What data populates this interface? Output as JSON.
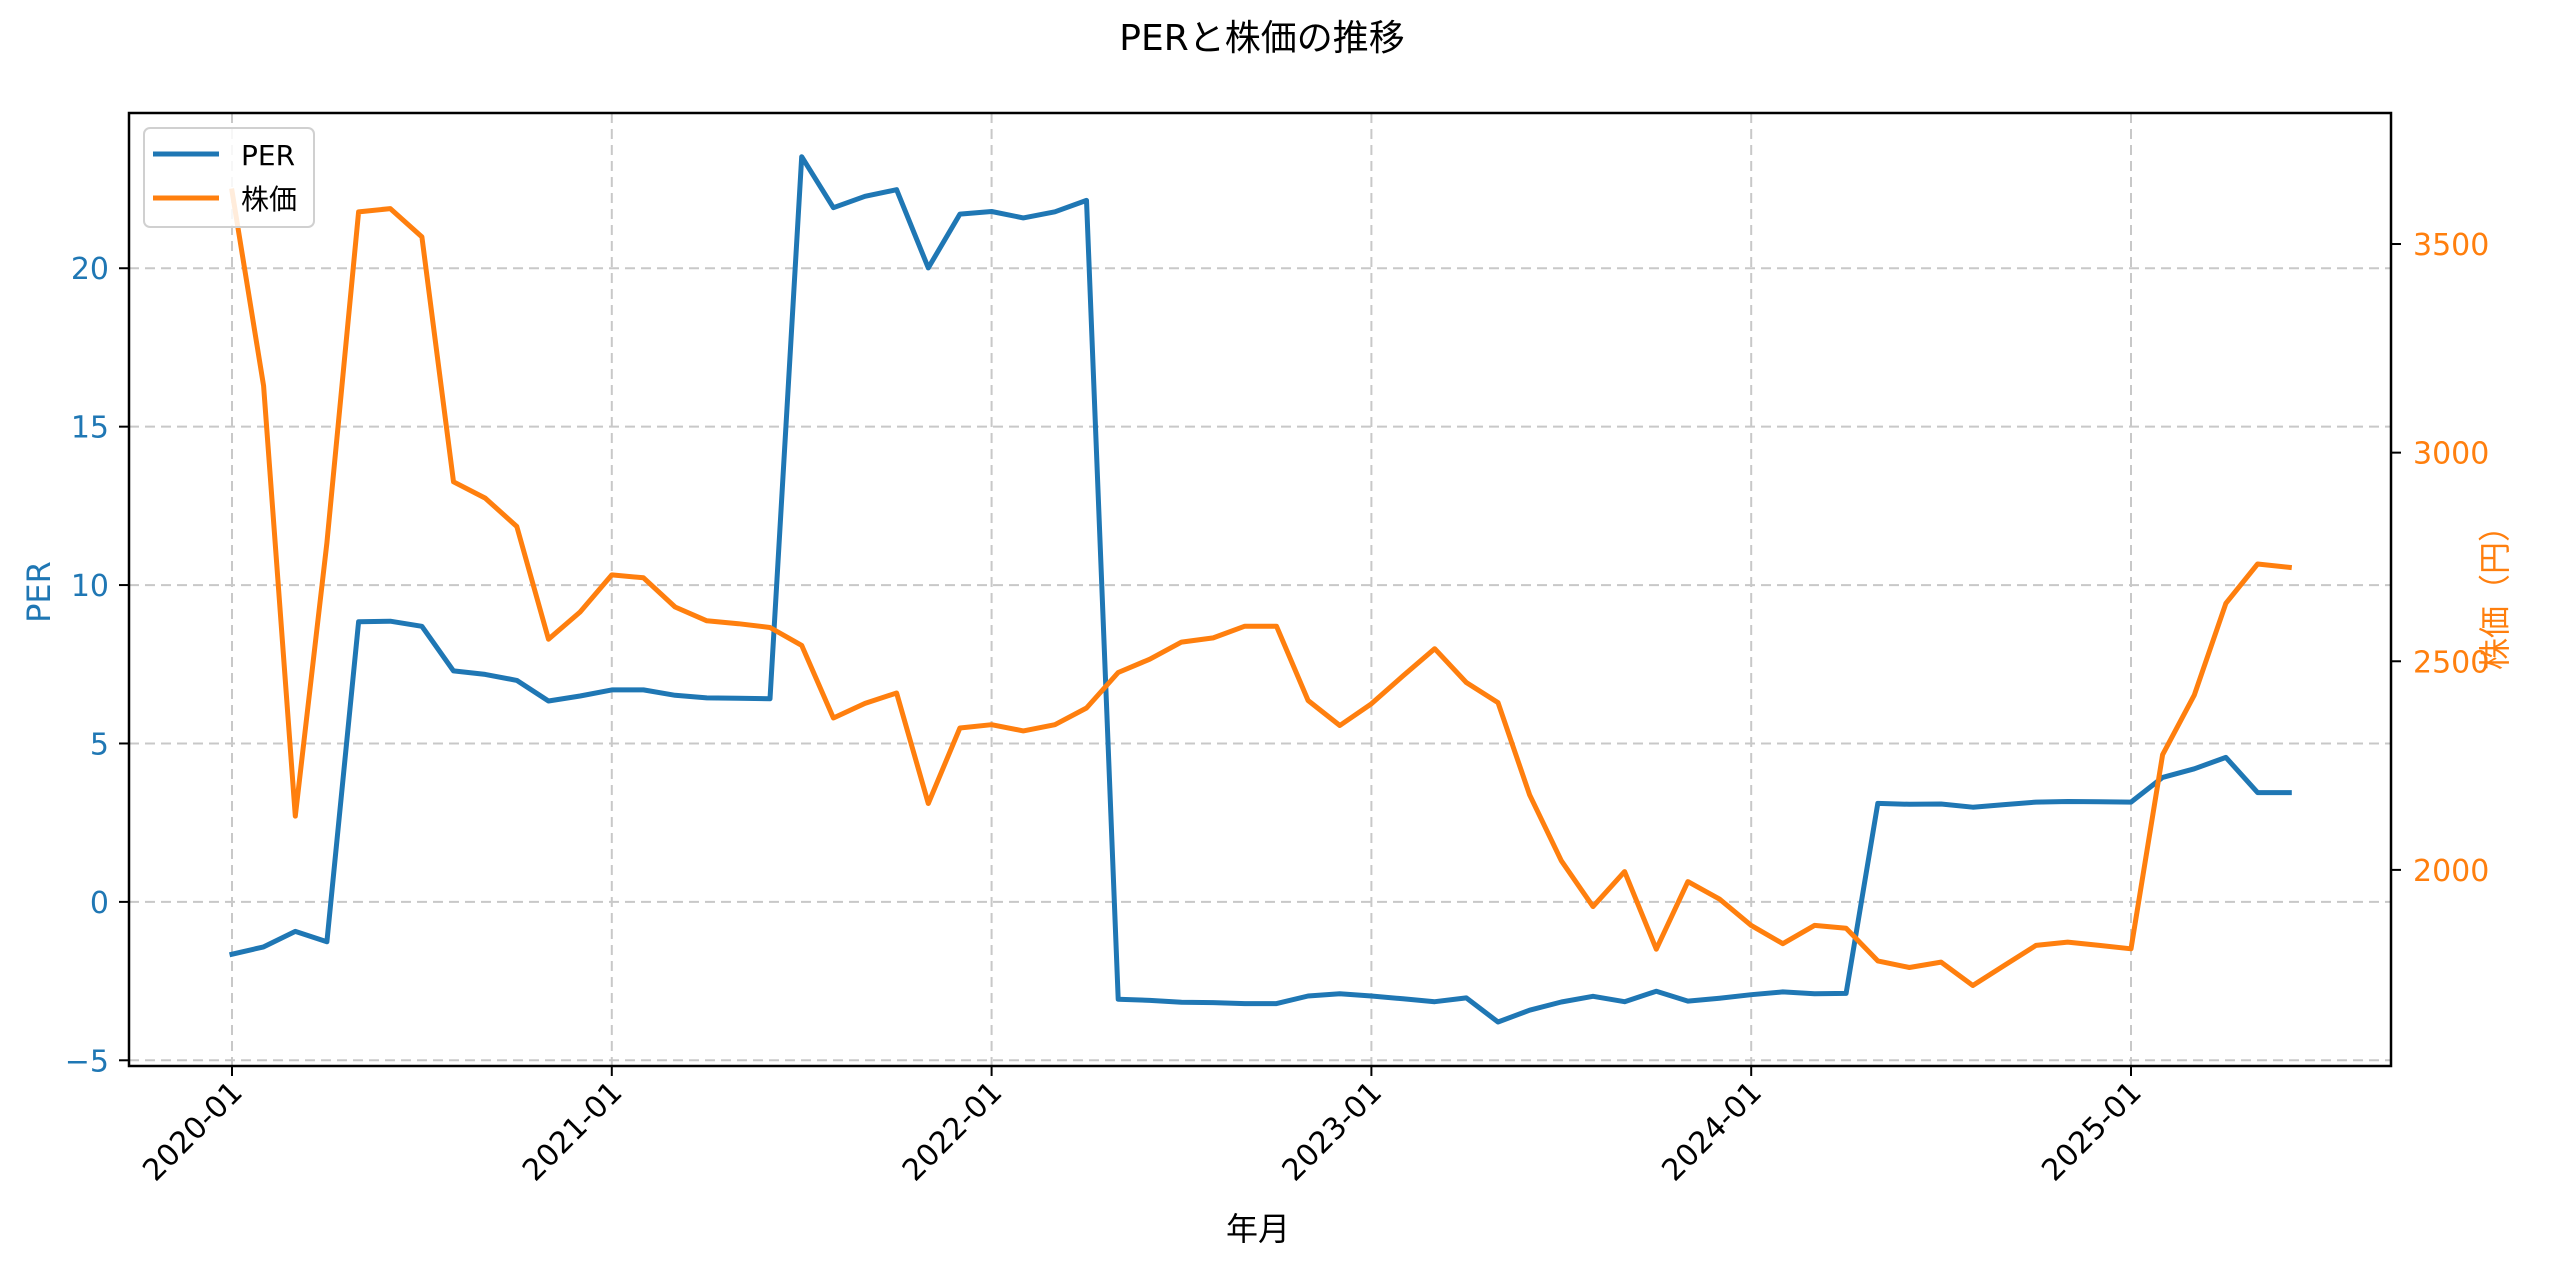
{
  "figure": {
    "title": "PERと株価の推移",
    "xlabel": "年月",
    "ylabel_left": "PER",
    "ylabel_right": "株価（円）"
  },
  "legend": {
    "items": [
      {
        "label": "PER",
        "color": "#1f77b4"
      },
      {
        "label": "株価",
        "color": "#ff7f0e"
      }
    ]
  },
  "colors": {
    "per": "#1f77b4",
    "price": "#ff7f0e",
    "grid": "#c8c8c8",
    "axis": "#000000"
  },
  "chart_data": {
    "type": "line",
    "title": "PERと株価の推移",
    "xlabel": "年月",
    "ylabel": "PER",
    "ylabel_right": "株価（円）",
    "grid": true,
    "legend_position": "upper left",
    "x": [
      "2020-01",
      "2020-02",
      "2020-03",
      "2020-04",
      "2020-05",
      "2020-06",
      "2020-07",
      "2020-08",
      "2020-09",
      "2020-10",
      "2020-11",
      "2020-12",
      "2021-01",
      "2021-02",
      "2021-03",
      "2021-04",
      "2021-05",
      "2021-06",
      "2021-07",
      "2021-08",
      "2021-09",
      "2021-10",
      "2021-11",
      "2021-12",
      "2022-01",
      "2022-02",
      "2022-03",
      "2022-04",
      "2022-05",
      "2022-06",
      "2022-07",
      "2022-08",
      "2022-09",
      "2022-10",
      "2022-11",
      "2022-12",
      "2023-01",
      "2023-02",
      "2023-03",
      "2023-04",
      "2023-05",
      "2023-06",
      "2023-07",
      "2023-08",
      "2023-09",
      "2023-10",
      "2023-11",
      "2023-12",
      "2024-01",
      "2024-02",
      "2024-03",
      "2024-04",
      "2024-05",
      "2024-06",
      "2024-07",
      "2024-08",
      "2024-09",
      "2024-10",
      "2024-11",
      "2024-12",
      "2025-01",
      "2025-02",
      "2025-03",
      "2025-04",
      "2025-05",
      "2025-06"
    ],
    "xticks": [
      "2020-01",
      "2021-01",
      "2022-01",
      "2023-01",
      "2024-01",
      "2025-01"
    ],
    "xtick_rotation": 45,
    "ylim": [
      -5.18,
      24.9
    ],
    "yticks": [
      -5,
      0,
      5,
      10,
      15,
      20
    ],
    "ylim_right": [
      1530,
      3814
    ],
    "yticks_right": [
      2000,
      2500,
      3000,
      3500
    ],
    "series": [
      {
        "name": "PER",
        "axis": "left",
        "color": "#1f77b4",
        "values": [
          -1.65,
          -1.42,
          -0.93,
          -1.26,
          8.84,
          8.86,
          8.7,
          7.29,
          7.18,
          6.99,
          6.34,
          6.5,
          6.69,
          6.69,
          6.52,
          6.44,
          6.43,
          6.41,
          23.52,
          21.91,
          22.27,
          22.48,
          20.01,
          21.71,
          21.79,
          21.59,
          21.78,
          22.14,
          -3.07,
          -3.11,
          -3.17,
          -3.18,
          -3.21,
          -3.21,
          -2.97,
          -2.9,
          -2.97,
          -3.06,
          -3.15,
          -3.03,
          -3.79,
          -3.42,
          -3.16,
          -2.98,
          -3.15,
          -2.82,
          -3.13,
          -3.04,
          -2.93,
          -2.84,
          -2.9,
          -2.89,
          3.11,
          3.08,
          3.09,
          2.99,
          3.07,
          3.15,
          3.17,
          3.16,
          3.15,
          3.93,
          4.2,
          4.56,
          3.45,
          3.45
        ]
      },
      {
        "name": "株価",
        "axis": "right",
        "color": "#ff7f0e",
        "values": [
          3627,
          3160,
          2129,
          2784,
          3577,
          3585,
          3517,
          2930,
          2891,
          2823,
          2553,
          2618,
          2707,
          2700,
          2630,
          2597,
          2590,
          2581,
          2538,
          2364,
          2399,
          2424,
          2159,
          2340,
          2348,
          2333,
          2348,
          2388,
          2473,
          2505,
          2546,
          2556,
          2584,
          2584,
          2406,
          2346,
          2398,
          2465,
          2530,
          2449,
          2401,
          2180,
          2022,
          1912,
          1996,
          1810,
          1972,
          1930,
          1867,
          1823,
          1867,
          1860,
          1782,
          1766,
          1779,
          1723,
          1771,
          1819,
          1827,
          1819,
          1811,
          2276,
          2419,
          2639,
          2733,
          2725
        ]
      }
    ]
  }
}
